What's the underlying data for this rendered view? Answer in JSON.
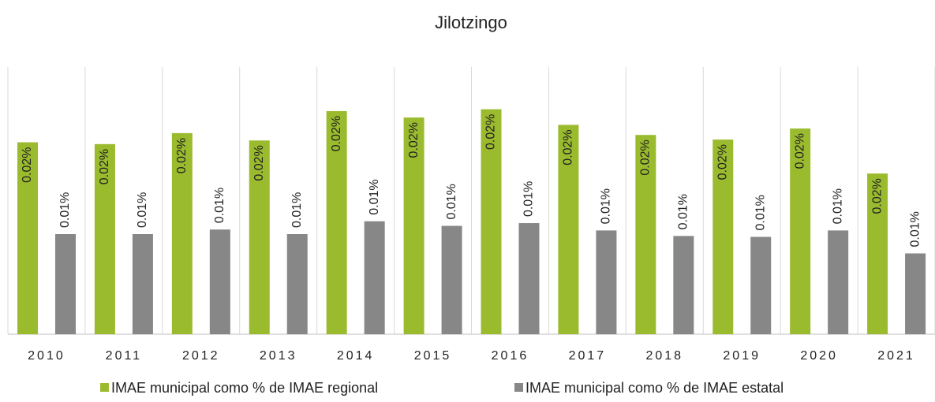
{
  "chart_data": {
    "type": "bar",
    "title": "Jilotzingo",
    "categories": [
      "2010",
      "2011",
      "2012",
      "2013",
      "2014",
      "2015",
      "2016",
      "2017",
      "2018",
      "2019",
      "2020",
      "2021"
    ],
    "series": [
      {
        "name": "IMAE municipal como % de IMAE regional",
        "color": "#9bbb2f",
        "values": [
          0.0209,
          0.0207,
          0.0219,
          0.0211,
          0.0243,
          0.0236,
          0.0245,
          0.0228,
          0.0217,
          0.0212,
          0.0224,
          0.0175
        ],
        "value_labels": [
          "0.02%",
          "0.02%",
          "0.02%",
          "0.02%",
          "0.02%",
          "0.02%",
          "0.02%",
          "0.02%",
          "0.02%",
          "0.02%",
          "0.02%",
          "0.02%"
        ]
      },
      {
        "name": "IMAE municipal como % de IMAE estatal",
        "color": "#878787",
        "values": [
          0.0109,
          0.0109,
          0.0114,
          0.0109,
          0.0123,
          0.0118,
          0.0121,
          0.0113,
          0.0107,
          0.0106,
          0.0113,
          0.0088
        ],
        "value_labels": [
          "0.01%",
          "0.01%",
          "0.01%",
          "0.01%",
          "0.01%",
          "0.01%",
          "0.01%",
          "0.01%",
          "0.01%",
          "0.01%",
          "0.01%",
          "0.01%"
        ]
      }
    ],
    "ylim": [
      0,
      0.0291
    ],
    "legend": "bottom"
  }
}
